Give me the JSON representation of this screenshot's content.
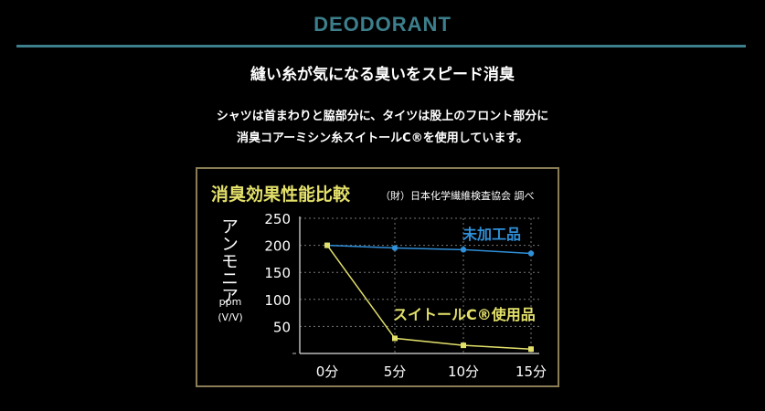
{
  "header": {
    "section_title": "DEODORANT",
    "headline": "縫い糸が気になる臭いをスピード消臭",
    "description_lines": [
      "シャツは首まわりと脇部分に、タイツは股上のフロント部分に",
      "消臭コアーミシン糸スイトールC®を使用しています。"
    ]
  },
  "colors": {
    "frame": "#8a7d55",
    "chart_title": "#e3e06a",
    "series_untreated": "#2f8fd8",
    "series_treated": "#e3e06a",
    "axis": "#bbbbbb"
  },
  "chart_data": {
    "type": "line",
    "title": "消臭効果性能比較",
    "source_note": "（財）日本化学繊維検査協会 調べ",
    "ylabel_main": "アンモニア",
    "ylabel_unit_1": "ppm",
    "ylabel_unit_2": "(V/V)",
    "categories": [
      "0分",
      "5分",
      "10分",
      "15分"
    ],
    "y_ticks": [
      "250",
      "200",
      "150",
      "100",
      "50"
    ],
    "ylim": [
      0,
      250
    ],
    "grid": true,
    "series": [
      {
        "name": "未加工品",
        "values": [
          200,
          195,
          192,
          185
        ]
      },
      {
        "name": "スイトールC®使用品",
        "values": [
          200,
          28,
          15,
          8
        ]
      }
    ]
  }
}
